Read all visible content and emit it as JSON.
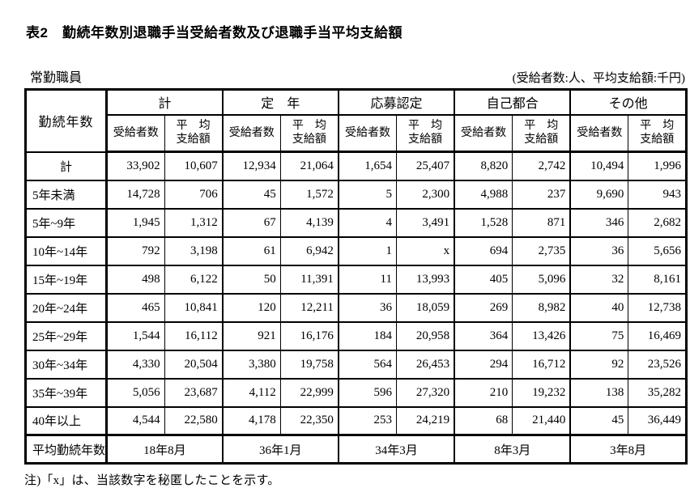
{
  "page": {
    "title": "表2　勤続年数別退職手当受給者数及び退職手当平均支給額",
    "staff_type": "常勤職員",
    "units_note": "(受給者数:人、平均支給額:千円)",
    "footnote": "注)「x」は、当該数字を秘匿したことを示す。"
  },
  "table": {
    "corner_header": "勤続年数",
    "groups": [
      "計",
      "定　年",
      "応募認定",
      "自己都合",
      "その他"
    ],
    "sub": {
      "recipients": "受給者数",
      "avg_line1": "平　均",
      "avg_line2": "支給額"
    },
    "rows": [
      {
        "label": "計",
        "center": true,
        "values": [
          "33,902",
          "10,607",
          "12,934",
          "21,064",
          "1,654",
          "25,407",
          "8,820",
          "2,742",
          "10,494",
          "1,996"
        ]
      },
      {
        "label": "5年未満",
        "center": false,
        "values": [
          "14,728",
          "706",
          "45",
          "1,572",
          "5",
          "2,300",
          "4,988",
          "237",
          "9,690",
          "943"
        ]
      },
      {
        "label": "5年~9年",
        "center": false,
        "values": [
          "1,945",
          "1,312",
          "67",
          "4,139",
          "4",
          "3,491",
          "1,528",
          "871",
          "346",
          "2,682"
        ]
      },
      {
        "label": "10年~14年",
        "center": false,
        "values": [
          "792",
          "3,198",
          "61",
          "6,942",
          "1",
          "x",
          "694",
          "2,735",
          "36",
          "5,656"
        ]
      },
      {
        "label": "15年~19年",
        "center": false,
        "values": [
          "498",
          "6,122",
          "50",
          "11,391",
          "11",
          "13,993",
          "405",
          "5,096",
          "32",
          "8,161"
        ]
      },
      {
        "label": "20年~24年",
        "center": false,
        "values": [
          "465",
          "10,841",
          "120",
          "12,211",
          "36",
          "18,059",
          "269",
          "8,982",
          "40",
          "12,738"
        ]
      },
      {
        "label": "25年~29年",
        "center": false,
        "values": [
          "1,544",
          "16,112",
          "921",
          "16,176",
          "184",
          "20,958",
          "364",
          "13,426",
          "75",
          "16,469"
        ]
      },
      {
        "label": "30年~34年",
        "center": false,
        "values": [
          "4,330",
          "20,504",
          "3,380",
          "19,758",
          "564",
          "26,453",
          "294",
          "16,712",
          "92",
          "23,526"
        ]
      },
      {
        "label": "35年~39年",
        "center": false,
        "values": [
          "5,056",
          "23,687",
          "4,112",
          "22,999",
          "596",
          "27,320",
          "210",
          "19,232",
          "138",
          "35,282"
        ]
      },
      {
        "label": "40年以上",
        "center": false,
        "values": [
          "4,544",
          "22,580",
          "4,178",
          "22,350",
          "253",
          "24,219",
          "68",
          "21,440",
          "45",
          "36,449"
        ]
      }
    ],
    "footer": {
      "label": "平均勤続年数",
      "values": [
        "18年8月",
        "36年1月",
        "34年3月",
        "8年3月",
        "3年8月"
      ]
    }
  }
}
